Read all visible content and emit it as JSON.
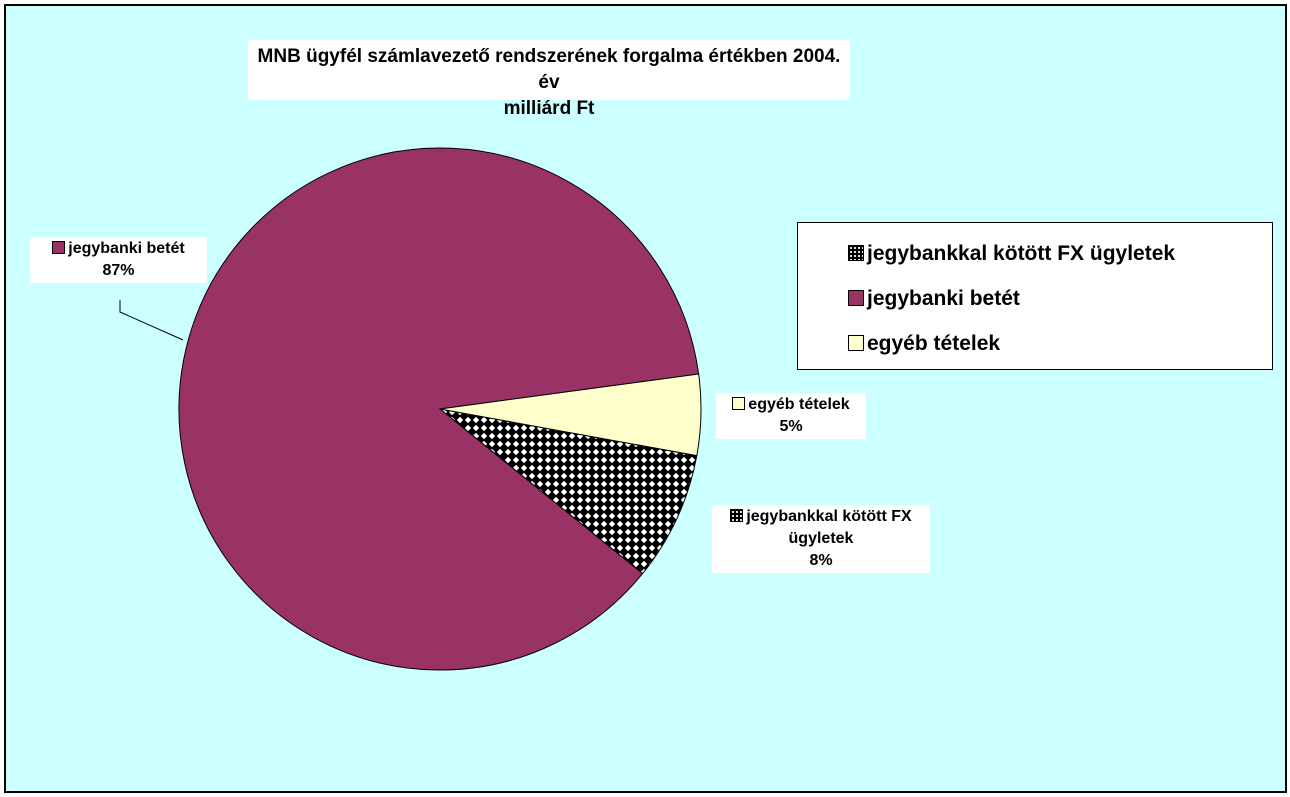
{
  "chart_data": {
    "type": "pie",
    "title": "MNB ügyfél számlavezető rendszerének forgalma értékben 2004. év",
    "subtitle": "milliárd Ft",
    "categories": [
      "jegybankkal kötött FX ügyletek",
      "jegybanki betét",
      "egyéb tételek"
    ],
    "values": [
      8,
      87,
      5
    ],
    "value_labels": [
      "8%",
      "87%",
      "5%"
    ],
    "colors": [
      "pattern",
      "#993366",
      "#ffffcc"
    ],
    "legend": "right"
  }
}
